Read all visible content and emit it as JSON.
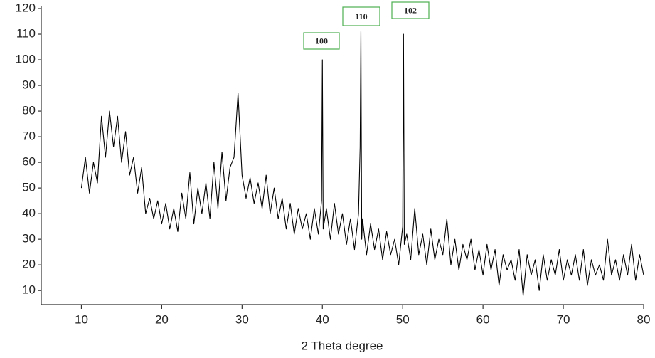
{
  "chart_data": {
    "type": "line",
    "x_label": "2 Theta degree",
    "annotations": [
      "100",
      "110",
      "102"
    ],
    "xlim": [
      5,
      80
    ],
    "xticks": [
      10,
      20,
      30,
      40,
      50,
      60,
      70,
      80
    ],
    "ylim": [
      4.5,
      121
    ],
    "yticks": [
      10,
      20,
      30,
      40,
      50,
      60,
      70,
      80,
      90,
      100,
      110,
      120
    ],
    "grid": false,
    "series": [
      {
        "color": "#000000",
        "x": [
          10,
          10.5,
          11,
          11.5,
          12,
          12.5,
          13,
          13.5,
          14,
          14.5,
          15,
          15.5,
          16,
          16.5,
          17,
          17.5,
          18,
          18.5,
          19,
          19.5,
          20,
          20.5,
          21,
          21.5,
          22,
          22.5,
          23,
          23.5,
          24,
          24.5,
          25,
          25.5,
          26,
          26.5,
          27,
          27.5,
          28,
          28.5,
          29,
          29.5,
          30,
          30.5,
          31,
          31.5,
          32,
          32.5,
          33,
          33.5,
          34,
          34.5,
          35,
          35.5,
          36,
          36.5,
          37,
          37.5,
          38,
          38.5,
          39,
          39.5,
          39.9,
          40,
          40.1,
          40.5,
          41,
          41.5,
          42,
          42.5,
          43,
          43.5,
          44,
          44.5,
          44.7,
          44.8,
          44.9,
          45,
          45.5,
          46,
          46.5,
          47,
          47.5,
          48,
          48.5,
          49,
          49.5,
          50,
          50.1,
          50.2,
          50.5,
          51,
          51.5,
          52,
          52.5,
          53,
          53.5,
          54,
          54.5,
          55,
          55.5,
          56,
          56.5,
          57,
          57.5,
          58,
          58.5,
          59,
          59.5,
          60,
          60.5,
          61,
          61.5,
          62,
          62.5,
          63,
          63.5,
          64,
          64.5,
          65,
          65.5,
          66,
          66.5,
          67,
          67.5,
          68,
          68.5,
          69,
          69.5,
          70,
          70.5,
          71,
          71.5,
          72,
          72.5,
          73,
          73.5,
          74,
          74.5,
          75,
          75.5,
          76,
          76.5,
          77,
          77.5,
          78,
          78.5,
          79,
          79.5,
          80
        ],
        "values": [
          50,
          62,
          48,
          60,
          52,
          78,
          62,
          80,
          66,
          78,
          60,
          72,
          55,
          62,
          48,
          58,
          40,
          46,
          38,
          45,
          36,
          44,
          34,
          42,
          33,
          48,
          38,
          56,
          36,
          50,
          40,
          52,
          38,
          60,
          42,
          64,
          45,
          58,
          62,
          87,
          55,
          46,
          54,
          44,
          52,
          42,
          55,
          40,
          50,
          38,
          46,
          34,
          44,
          32,
          42,
          34,
          40,
          30,
          42,
          32,
          45,
          100,
          34,
          42,
          30,
          44,
          32,
          40,
          28,
          38,
          26,
          40,
          66,
          111,
          30,
          38,
          24,
          36,
          26,
          34,
          22,
          33,
          24,
          30,
          20,
          35,
          110,
          28,
          32,
          22,
          42,
          24,
          32,
          20,
          34,
          22,
          30,
          24,
          38,
          20,
          30,
          18,
          28,
          22,
          30,
          18,
          26,
          16,
          28,
          18,
          26,
          12,
          24,
          18,
          22,
          14,
          26,
          8,
          24,
          16,
          22,
          10,
          24,
          14,
          22,
          16,
          26,
          14,
          22,
          16,
          24,
          14,
          26,
          12,
          22,
          16,
          20,
          14,
          30,
          16,
          22,
          14,
          24,
          16,
          28,
          14,
          24,
          16
        ]
      }
    ]
  }
}
